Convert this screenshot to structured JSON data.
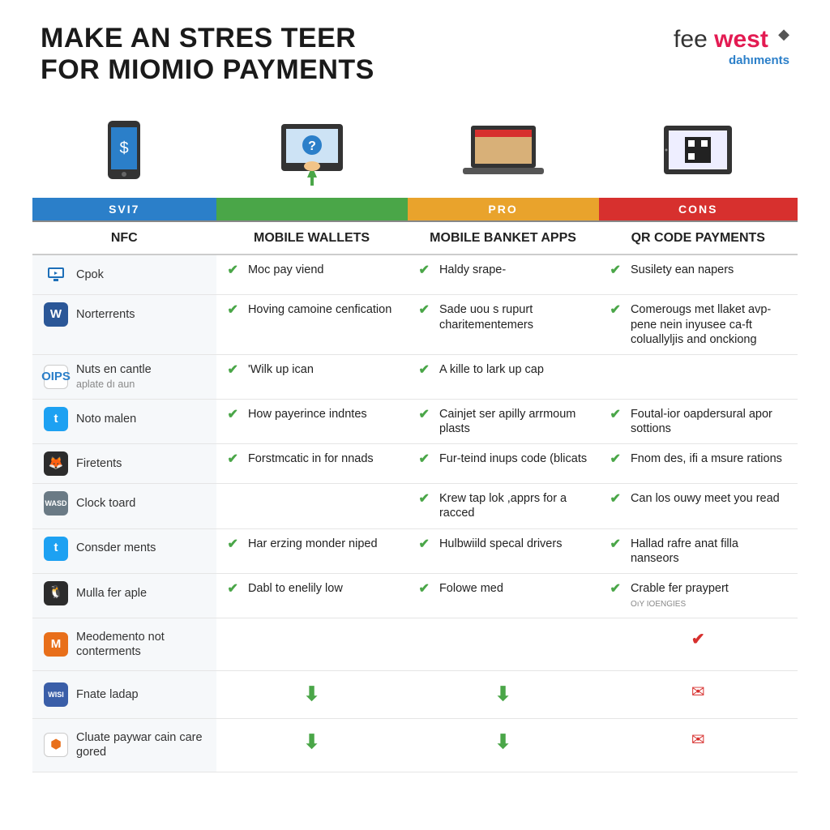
{
  "title_line1": "MAKE AN STRES TEER",
  "title_line2": "FOR MIOMIO PAYMENTS",
  "logo": {
    "word1": "fee",
    "word2": "west",
    "sub": "dahıments"
  },
  "band": {
    "c1": "SVI7",
    "c2": "",
    "c3": "PRO",
    "c4": "CONS",
    "colors": [
      "#2b7fc9",
      "#4aa648",
      "#e9a32c",
      "#d7302e"
    ]
  },
  "subheaders": {
    "c1": "NFC",
    "c2": "MOBILE WALLETS",
    "c3": "MOBILE BANKET APPS",
    "c4": "QR CODE PAYMENTS"
  },
  "rows": [
    {
      "icon": {
        "bg": "#1d6fb8",
        "glyph": "▶",
        "shape": "monitor"
      },
      "label": "Cpok",
      "c2": "Moc pay viend",
      "c3": "Haldy srape-",
      "c4": "Susilety ean napers"
    },
    {
      "icon": {
        "bg": "#2b5797",
        "glyph": "W"
      },
      "label": "Norterrents",
      "c2": "Hoving camoine cenfication",
      "c3": "Sade uou s rupurt charitementemers",
      "c4": "Comerougs met llaket avp-pene nein inyusee ca-ft coluallyljis and onckiong"
    },
    {
      "icon": {
        "bg": "#ffffff",
        "glyph": "OIPS",
        "fg": "#2b7fc9",
        "border": true
      },
      "label": "Nuts en cantle",
      "sub": "aplate dı aun",
      "c2": "'Wilk up ican",
      "c3": "A kille to lark up cap",
      "c4": ""
    },
    {
      "icon": {
        "bg": "#1da1f2",
        "glyph": "t"
      },
      "label": "Noto malen",
      "c2": "How payerince indntes",
      "c3": "Cainjet ser apilly arrmoum plasts",
      "c4": "Foutal-ior oapdersural apor sottions"
    },
    {
      "icon": {
        "bg": "#2c2c2c",
        "glyph": "🦊"
      },
      "label": "Firetents",
      "c2": "Forstmcatic in for nnads",
      "c3": "Fur-teind inups code (blicats",
      "c4": "Fnom des, ifi a msure rations"
    },
    {
      "icon": {
        "bg": "#6a7a85",
        "glyph": "WASD",
        "small": true
      },
      "label": "Clock toard",
      "c2": "",
      "c3": "Krew tap lok ,apprs for a racced",
      "c4": "Can los ouwy meet you read"
    },
    {
      "icon": {
        "bg": "#1da1f2",
        "glyph": "t"
      },
      "label": "Consder ments",
      "c2": "Har erzing monder niped",
      "c3": "Hulbwiild specal drivers",
      "c4": "Hallad rafre anat filla nanseors"
    },
    {
      "icon": {
        "bg": "#2c2c2c",
        "glyph": "🐧"
      },
      "label": "Mulla fer aple",
      "c2": "Dabl to enelily low",
      "c3": "Folowe med",
      "c4": "Crable fer praypert",
      "c4_sub": "OıY IOENGIES"
    },
    {
      "icon": {
        "bg": "#e86f1a",
        "glyph": "M"
      },
      "label": "Meodemento not conterments",
      "c2": "",
      "c3": "",
      "c4_redcheck": true
    },
    {
      "icon": {
        "bg": "#3a5ea8",
        "glyph": "WISI",
        "small": true
      },
      "label": "Fnate ladap",
      "c2_arrow": true,
      "c3_arrow": true,
      "c4_mail": true
    },
    {
      "icon": {
        "bg": "#ffffff",
        "glyph": "⬢",
        "fg": "#e86f1a",
        "border": true
      },
      "label": "Cluate paywar cain care gored",
      "c2_arrow": true,
      "c3_arrow": true,
      "c4_mail_outline": true
    }
  ]
}
